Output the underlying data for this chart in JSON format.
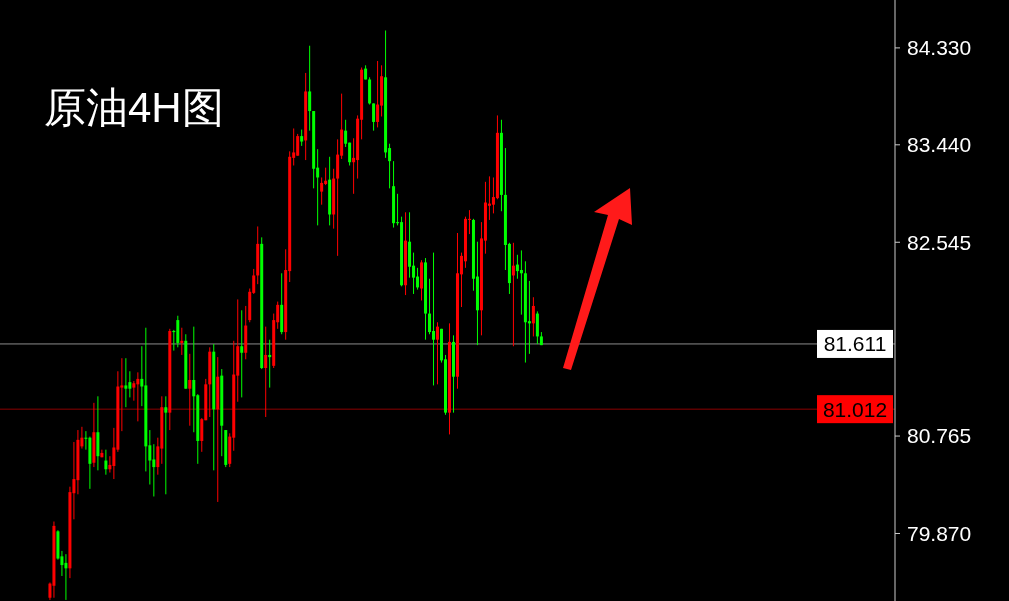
{
  "chart_data": {
    "type": "candlestick",
    "title": "原油4H图",
    "categories": [
      null,
      null,
      null,
      null,
      null,
      null,
      null,
      null,
      null,
      null,
      null,
      null,
      null,
      null,
      null,
      null,
      null,
      null,
      null,
      null,
      null,
      null,
      null,
      null,
      null,
      null,
      null,
      null,
      null,
      null,
      null,
      null,
      null,
      null,
      null,
      null,
      null,
      null,
      null,
      null,
      null,
      null,
      null,
      null,
      null,
      null,
      null,
      null,
      null,
      null,
      null,
      null,
      null,
      null,
      null,
      null,
      null,
      null,
      null,
      null,
      null,
      null,
      null,
      null,
      null,
      null,
      null,
      null,
      null,
      null,
      null,
      null,
      null,
      null,
      null,
      null,
      null,
      null,
      null,
      null,
      null,
      null,
      null,
      null,
      null,
      null,
      null,
      null,
      null,
      null,
      null,
      null,
      null,
      null,
      null,
      null,
      null,
      null,
      null,
      null,
      null,
      null,
      null,
      null,
      null,
      null,
      null,
      null,
      null,
      null,
      null,
      null,
      null,
      null,
      null,
      null,
      null,
      null,
      null,
      null,
      null,
      null,
      null,
      null,
      null,
      null,
      null,
      null,
      null,
      null,
      null,
      null,
      null,
      null,
      null,
      null,
      null,
      null,
      null,
      null,
      null,
      null,
      null,
      null,
      null,
      null,
      null,
      null,
      null,
      null,
      null,
      null,
      null,
      null,
      null,
      null,
      null,
      null,
      null,
      null,
      null,
      null,
      null,
      null,
      null,
      null,
      null,
      null,
      null,
      null,
      null,
      null,
      null,
      null,
      null,
      null,
      null,
      null,
      null,
      null,
      null,
      null,
      null,
      null,
      null,
      null,
      null,
      null,
      null,
      null,
      null,
      null,
      null,
      null,
      null,
      null,
      null,
      null,
      null,
      null,
      null,
      null,
      null,
      null,
      null,
      null,
      null,
      null,
      null,
      null,
      null,
      null,
      null,
      null,
      null,
      null,
      null,
      null,
      null,
      null,
      null,
      null,
      null,
      null
    ],
    "ohlc": [
      null,
      null,
      null,
      null,
      null,
      null,
      null,
      null,
      null,
      null,
      null,
      null,
      [
        79.28,
        79.42,
        79.26,
        79.41
      ],
      [
        79.39,
        79.98,
        79.28,
        79.94
      ],
      [
        79.89,
        79.9,
        79.63,
        79.64
      ],
      [
        79.66,
        79.71,
        79.48,
        79.58
      ],
      [
        79.6,
        79.68,
        79.26,
        79.55
      ],
      [
        79.55,
        80.3,
        79.46,
        80.25
      ],
      [
        80.24,
        80.71,
        80.0,
        80.37
      ],
      [
        80.36,
        80.82,
        80.23,
        80.73
      ],
      [
        80.67,
        80.85,
        80.65,
        80.75
      ],
      [
        80.75,
        80.81,
        80.64,
        80.74
      ],
      [
        80.75,
        80.76,
        80.28,
        80.51
      ],
      [
        80.52,
        81.07,
        80.48,
        80.8
      ],
      [
        80.8,
        81.13,
        80.45,
        80.58
      ],
      [
        80.57,
        80.64,
        80.57,
        80.61
      ],
      [
        80.54,
        80.64,
        80.41,
        80.46
      ],
      [
        80.46,
        80.58,
        80.43,
        80.5
      ],
      [
        80.49,
        80.84,
        80.37,
        80.66
      ],
      [
        80.64,
        81.36,
        80.62,
        81.22
      ],
      [
        81.21,
        81.48,
        80.81,
        81.23
      ],
      [
        81.23,
        81.48,
        81.03,
        81.2
      ],
      [
        81.26,
        81.36,
        81.12,
        81.2
      ],
      [
        81.21,
        81.27,
        81.09,
        81.25
      ],
      [
        81.24,
        81.35,
        80.9,
        81.29
      ],
      [
        81.29,
        81.59,
        81.04,
        81.22
      ],
      [
        81.23,
        81.76,
        80.44,
        80.67
      ],
      [
        80.68,
        80.82,
        80.32,
        80.54
      ],
      [
        80.55,
        80.69,
        80.21,
        80.48
      ],
      [
        80.48,
        80.75,
        80.41,
        80.67
      ],
      [
        80.65,
        81.13,
        80.51,
        81.03
      ],
      [
        81.03,
        81.13,
        80.23,
        80.98
      ],
      [
        80.98,
        81.75,
        80.82,
        81.73
      ],
      [
        81.73,
        81.74,
        81.55,
        81.72
      ],
      [
        81.83,
        81.87,
        81.58,
        81.62
      ],
      [
        81.62,
        81.76,
        81.51,
        81.64
      ],
      [
        81.64,
        81.7,
        81.2,
        81.2
      ],
      [
        81.2,
        81.52,
        80.86,
        81.28
      ],
      [
        81.28,
        81.77,
        80.8,
        81.13
      ],
      [
        81.14,
        81.15,
        80.51,
        80.72
      ],
      [
        80.72,
        80.93,
        80.62,
        80.92
      ],
      [
        80.91,
        81.29,
        80.91,
        81.24
      ],
      [
        81.24,
        81.58,
        80.94,
        81.54
      ],
      [
        81.54,
        81.61,
        80.45,
        81.01
      ],
      [
        81.01,
        81.49,
        80.16,
        81.31
      ],
      [
        81.32,
        81.38,
        80.58,
        80.86
      ],
      [
        80.82,
        80.82,
        80.48,
        80.5
      ],
      [
        80.51,
        80.79,
        80.48,
        80.76
      ],
      [
        80.75,
        81.64,
        80.63,
        81.33
      ],
      [
        81.32,
        82.02,
        81.08,
        81.59
      ],
      [
        81.59,
        81.92,
        81.12,
        81.53
      ],
      [
        81.53,
        81.96,
        81.47,
        81.78
      ],
      [
        81.83,
        82.12,
        81.81,
        82.09
      ],
      [
        82.08,
        82.3,
        82.07,
        82.24
      ],
      [
        82.24,
        82.69,
        82.16,
        82.53
      ],
      [
        82.53,
        82.59,
        81.38,
        81.39
      ],
      [
        81.39,
        81.77,
        80.94,
        81.51
      ],
      [
        81.51,
        81.65,
        81.21,
        81.49
      ],
      [
        81.41,
        81.89,
        81.39,
        81.83
      ],
      [
        81.81,
        82.0,
        81.75,
        81.97
      ],
      [
        81.97,
        82.26,
        81.7,
        81.72
      ],
      [
        81.72,
        82.48,
        81.65,
        82.29
      ],
      [
        82.28,
        83.38,
        82.18,
        83.33
      ],
      [
        83.32,
        83.59,
        83.25,
        83.37
      ],
      [
        83.34,
        83.54,
        83.34,
        83.52
      ],
      [
        83.52,
        83.58,
        83.43,
        83.47
      ],
      [
        83.48,
        84.1,
        83.3,
        83.93
      ],
      [
        83.93,
        84.35,
        83.57,
        83.75
      ],
      [
        83.75,
        83.75,
        83.04,
        83.22
      ],
      [
        83.23,
        83.4,
        82.7,
        83.14
      ],
      [
        83.01,
        83.14,
        82.89,
        83.09
      ],
      [
        83.08,
        83.23,
        83.07,
        83.11
      ],
      [
        83.12,
        83.33,
        82.7,
        82.8
      ],
      [
        82.8,
        83.22,
        82.67,
        83.13
      ],
      [
        83.13,
        83.49,
        82.42,
        83.35
      ],
      [
        83.34,
        83.91,
        83.31,
        83.58
      ],
      [
        83.57,
        83.67,
        83.42,
        83.45
      ],
      [
        83.46,
        83.46,
        83.25,
        83.28
      ],
      [
        83.28,
        83.5,
        82.99,
        83.32
      ],
      [
        83.3,
        83.71,
        83.13,
        83.68
      ],
      [
        83.67,
        84.15,
        83.49,
        84.13
      ],
      [
        84.14,
        84.17,
        84.04,
        84.04
      ],
      [
        84.04,
        84.06,
        83.81,
        83.82
      ],
      [
        83.82,
        83.82,
        83.57,
        83.65
      ],
      [
        83.65,
        84.21,
        83.6,
        83.81
      ],
      [
        83.8,
        84.17,
        83.7,
        84.07
      ],
      [
        84.06,
        84.49,
        83.32,
        83.37
      ],
      [
        83.41,
        83.45,
        83.04,
        83.29
      ],
      [
        83.06,
        83.29,
        82.68,
        82.72
      ],
      [
        82.73,
        82.99,
        82.7,
        82.72
      ],
      [
        82.73,
        82.78,
        82.14,
        82.15
      ],
      [
        82.15,
        82.82,
        82.06,
        82.56
      ],
      [
        82.55,
        82.82,
        82.22,
        82.32
      ],
      [
        82.33,
        82.45,
        82.07,
        82.22
      ],
      [
        82.23,
        82.31,
        82.11,
        82.13
      ],
      [
        82.12,
        82.38,
        82.01,
        82.36
      ],
      [
        82.36,
        82.4,
        81.65,
        81.89
      ],
      [
        81.89,
        82.21,
        81.7,
        81.72
      ],
      [
        81.73,
        82.45,
        81.23,
        81.65
      ],
      [
        81.65,
        81.81,
        81.24,
        81.77
      ],
      [
        81.75,
        81.75,
        81.44,
        81.46
      ],
      [
        81.47,
        81.51,
        80.96,
        80.98
      ],
      [
        80.98,
        81.8,
        80.78,
        81.63
      ],
      [
        81.63,
        81.69,
        80.98,
        81.31
      ],
      [
        81.31,
        82.63,
        81.2,
        82.26
      ],
      [
        82.25,
        82.45,
        81.95,
        82.42
      ],
      [
        82.37,
        82.78,
        82.31,
        82.76
      ],
      [
        82.75,
        82.84,
        82.62,
        82.76
      ],
      [
        82.75,
        82.76,
        82.1,
        82.21
      ],
      [
        82.23,
        82.55,
        81.6,
        81.92
      ],
      [
        81.92,
        82.73,
        81.69,
        82.58
      ],
      [
        82.56,
        83.1,
        82.44,
        82.91
      ],
      [
        82.88,
        83.15,
        82.75,
        82.9
      ],
      [
        82.89,
        83.14,
        82.81,
        82.96
      ],
      [
        82.95,
        83.71,
        82.94,
        83.55
      ],
      [
        83.55,
        83.67,
        82.83,
        82.98
      ],
      [
        82.98,
        83.41,
        82.29,
        82.52
      ],
      [
        82.53,
        82.54,
        82.07,
        82.17
      ],
      [
        82.24,
        82.54,
        81.59,
        82.33
      ],
      [
        82.34,
        82.43,
        82.21,
        82.28
      ],
      [
        82.29,
        82.47,
        81.88,
        82.26
      ],
      [
        82.26,
        82.37,
        81.44,
        81.81
      ],
      [
        81.82,
        82.19,
        81.52,
        81.8
      ],
      [
        81.8,
        82.04,
        81.68,
        81.96
      ],
      [
        81.89,
        81.91,
        81.61,
        81.68
      ],
      [
        81.68,
        81.72,
        81.6,
        81.6
      ],
      null,
      null,
      null,
      null,
      null,
      null,
      null,
      null,
      null,
      null,
      null,
      null,
      null,
      null,
      null,
      null,
      null,
      null,
      null,
      null,
      null,
      null,
      null,
      null,
      null,
      null,
      null,
      null,
      null,
      null,
      null,
      null,
      null,
      null,
      null,
      null,
      null,
      null,
      null,
      null,
      null,
      null,
      null,
      null,
      null,
      null,
      null,
      null,
      null,
      null,
      null,
      null,
      null,
      null,
      null,
      null,
      null,
      null,
      null,
      null,
      null,
      null,
      null,
      null,
      null,
      null,
      null,
      null,
      null,
      null,
      null,
      null,
      null,
      null,
      null,
      null,
      null,
      null,
      null,
      null,
      null,
      null,
      null,
      null,
      null,
      null,
      null,
      null
    ],
    "colors": [
      null,
      null,
      null,
      null,
      null,
      null,
      null,
      null,
      null,
      null,
      null,
      null,
      "#ff0000",
      "#ff0000",
      "#00ff00",
      "#00ff00",
      "#00ff00",
      "#ff0000",
      "#ff0000",
      "#ff0000",
      "#ff0000",
      "#00ff00",
      "#00ff00",
      "#ff0000",
      "#00ff00",
      "#ff0000",
      "#00ff00",
      "#ff0000",
      "#ff0000",
      "#ff0000",
      "#ff0000",
      "#00ff00",
      "#00ff00",
      "#ff0000",
      "#ff0000",
      "#00ff00",
      "#00ff00",
      "#00ff00",
      "#00ff00",
      "#ff0000",
      "#ff0000",
      "#00ff00",
      "#ff0000",
      "#00ff00",
      "#00ff00",
      "#ff0000",
      "#00ff00",
      "#ff0000",
      "#00ff00",
      "#00ff00",
      "#ff0000",
      "#ff0000",
      "#ff0000",
      "#00ff00",
      "#ff0000",
      "#00ff00",
      "#00ff00",
      "#ff0000",
      "#ff0000",
      "#ff0000",
      "#00ff00",
      "#ff0000",
      "#ff0000",
      "#ff0000",
      "#ff0000",
      "#00ff00",
      "#ff0000",
      "#00ff00",
      "#ff0000",
      "#ff0000",
      "#00ff00",
      "#ff0000",
      "#ff0000",
      "#ff0000",
      "#ff0000",
      "#00ff00",
      "#ff0000",
      "#00ff00",
      "#00ff00",
      "#00ff00",
      "#ff0000",
      "#ff0000",
      "#00ff00",
      "#ff0000",
      "#ff0000",
      "#ff0000",
      "#00ff00",
      "#00ff00",
      "#ff0000",
      "#ff0000",
      "#ff0000",
      "#00ff00",
      "#00ff00",
      "#00ff00",
      "#ff0000",
      "#ff0000",
      "#00ff00",
      "#00ff00",
      "#00ff00",
      "#00ff00",
      "#00ff00",
      "#ff0000",
      "#00ff00",
      "#00ff00",
      "#00ff00",
      "#ff0000",
      "#00ff00",
      "#00ff00",
      "#00ff00",
      "#ff0000",
      "#00ff00",
      "#00ff00",
      "#ff0000",
      "#00ff00",
      "#ff0000",
      "#ff0000",
      "#ff0000",
      "#ff0000",
      "#00ff00",
      "#00ff00",
      "#ff0000",
      "#ff0000",
      "#ff0000",
      "#ff0000",
      "#ff0000",
      "#00ff00",
      "#00ff00",
      "#00ff00",
      "#ff0000",
      "#00ff00",
      "#00ff00",
      "#00ff00",
      "#00ff00",
      "#ff0000",
      "#00ff00",
      "#00ff00",
      null,
      null,
      null,
      null,
      null,
      null,
      null,
      null,
      null,
      null,
      null,
      null,
      null,
      null,
      null,
      null,
      null,
      null,
      null,
      null,
      null,
      null,
      null,
      null,
      null,
      null,
      null,
      null,
      null,
      null,
      null,
      null,
      null,
      null,
      null,
      null,
      null,
      null,
      null,
      null,
      null,
      null,
      null,
      null,
      null,
      null,
      null,
      null,
      null,
      null,
      null,
      null,
      null,
      null,
      null,
      null,
      null,
      null,
      null,
      null,
      null,
      null,
      null,
      null,
      null,
      null,
      null,
      null,
      null,
      null,
      null,
      null,
      null,
      null,
      null,
      null,
      null,
      null,
      null,
      null,
      null,
      null,
      null,
      null,
      null,
      null,
      null,
      null
    ],
    "ylim": [
      79.25,
      84.77
    ],
    "yticks": [
      {
        "value": 84.33,
        "label": "84.330"
      },
      {
        "value": 83.44,
        "label": "83.440"
      },
      {
        "value": 82.545,
        "label": "82.545"
      },
      {
        "value": 80.765,
        "label": "80.765"
      },
      {
        "value": 79.87,
        "label": "79.870"
      }
    ],
    "ref_lines": [
      {
        "axis": "y",
        "value": 81.611,
        "label": "81.611",
        "color": "#ffffff"
      },
      {
        "axis": "y",
        "value": 81.012,
        "label": "81.012",
        "color": "#ff0000"
      }
    ]
  }
}
